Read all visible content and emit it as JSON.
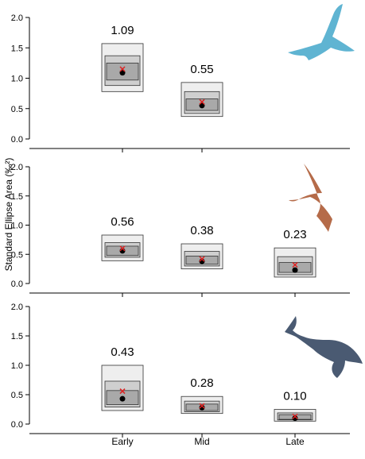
{
  "y_axis_label": "Standard Ellipse Area (‰²)",
  "colors": {
    "box_outer": "#eeeeee",
    "box_middle": "#cfcfcf",
    "box_inner": "#a9a9a9",
    "stroke": "#333333",
    "mean_point": "#000000",
    "mode_marker": "#dd2222",
    "icon_bird": "#5fb4d2",
    "icon_albatross": "#b56b49",
    "icon_whale": "#4a5a72"
  },
  "chart_data": [
    {
      "type": "box",
      "panel": "top",
      "icon": "flying-seabird-icon",
      "categories": [
        "Early",
        "Mid"
      ],
      "ylim": [
        0,
        2.0
      ],
      "yticks": [
        "0.0",
        "0.5",
        "1.0",
        "1.5",
        "2.0"
      ],
      "series": [
        {
          "category": "Early",
          "label": "1.09",
          "value": 1.09,
          "mode": 1.15,
          "intervals": {
            "outer": [
              0.78,
              1.57
            ],
            "middle": [
              0.88,
              1.37
            ],
            "inner": [
              0.97,
              1.25
            ]
          }
        },
        {
          "category": "Mid",
          "label": "0.55",
          "value": 0.55,
          "mode": 0.61,
          "intervals": {
            "outer": [
              0.37,
              0.93
            ],
            "middle": [
              0.42,
              0.78
            ],
            "inner": [
              0.47,
              0.66
            ]
          }
        }
      ]
    },
    {
      "type": "box",
      "panel": "middle",
      "icon": "albatross-icon",
      "categories": [
        "Early",
        "Mid",
        "Late"
      ],
      "ylim": [
        0,
        2.0
      ],
      "yticks": [
        "0.0",
        "0.5",
        "1.0",
        "1.5",
        "2.0"
      ],
      "series": [
        {
          "category": "Early",
          "label": "0.56",
          "value": 0.56,
          "mode": 0.6,
          "intervals": {
            "outer": [
              0.39,
              0.83
            ],
            "middle": [
              0.45,
              0.7
            ],
            "inner": [
              0.48,
              0.64
            ]
          }
        },
        {
          "category": "Mid",
          "label": "0.38",
          "value": 0.38,
          "mode": 0.42,
          "intervals": {
            "outer": [
              0.25,
              0.68
            ],
            "middle": [
              0.3,
              0.55
            ],
            "inner": [
              0.33,
              0.47
            ]
          }
        },
        {
          "category": "Late",
          "label": "0.23",
          "value": 0.23,
          "mode": 0.32,
          "intervals": {
            "outer": [
              0.11,
              0.61
            ],
            "middle": [
              0.15,
              0.46
            ],
            "inner": [
              0.19,
              0.36
            ]
          }
        }
      ]
    },
    {
      "type": "box",
      "panel": "bottom",
      "icon": "whale-icon",
      "categories": [
        "Early",
        "Mid",
        "Late"
      ],
      "ylim": [
        0,
        2.0
      ],
      "yticks": [
        "0.0",
        "0.5",
        "1.0",
        "1.5",
        "2.0"
      ],
      "xlabels": [
        "Early",
        "Mid",
        "Late"
      ],
      "series": [
        {
          "category": "Early",
          "label": "0.43",
          "value": 0.43,
          "mode": 0.56,
          "intervals": {
            "outer": [
              0.23,
              1.0
            ],
            "middle": [
              0.29,
              0.73
            ],
            "inner": [
              0.33,
              0.57
            ]
          }
        },
        {
          "category": "Mid",
          "label": "0.28",
          "value": 0.28,
          "mode": 0.31,
          "intervals": {
            "outer": [
              0.18,
              0.47
            ],
            "middle": [
              0.21,
              0.39
            ],
            "inner": [
              0.23,
              0.34
            ]
          }
        },
        {
          "category": "Late",
          "label": "0.10",
          "value": 0.1,
          "mode": 0.13,
          "intervals": {
            "outer": [
              0.05,
              0.25
            ],
            "middle": [
              0.07,
              0.19
            ],
            "inner": [
              0.08,
              0.16
            ]
          }
        }
      ]
    }
  ]
}
